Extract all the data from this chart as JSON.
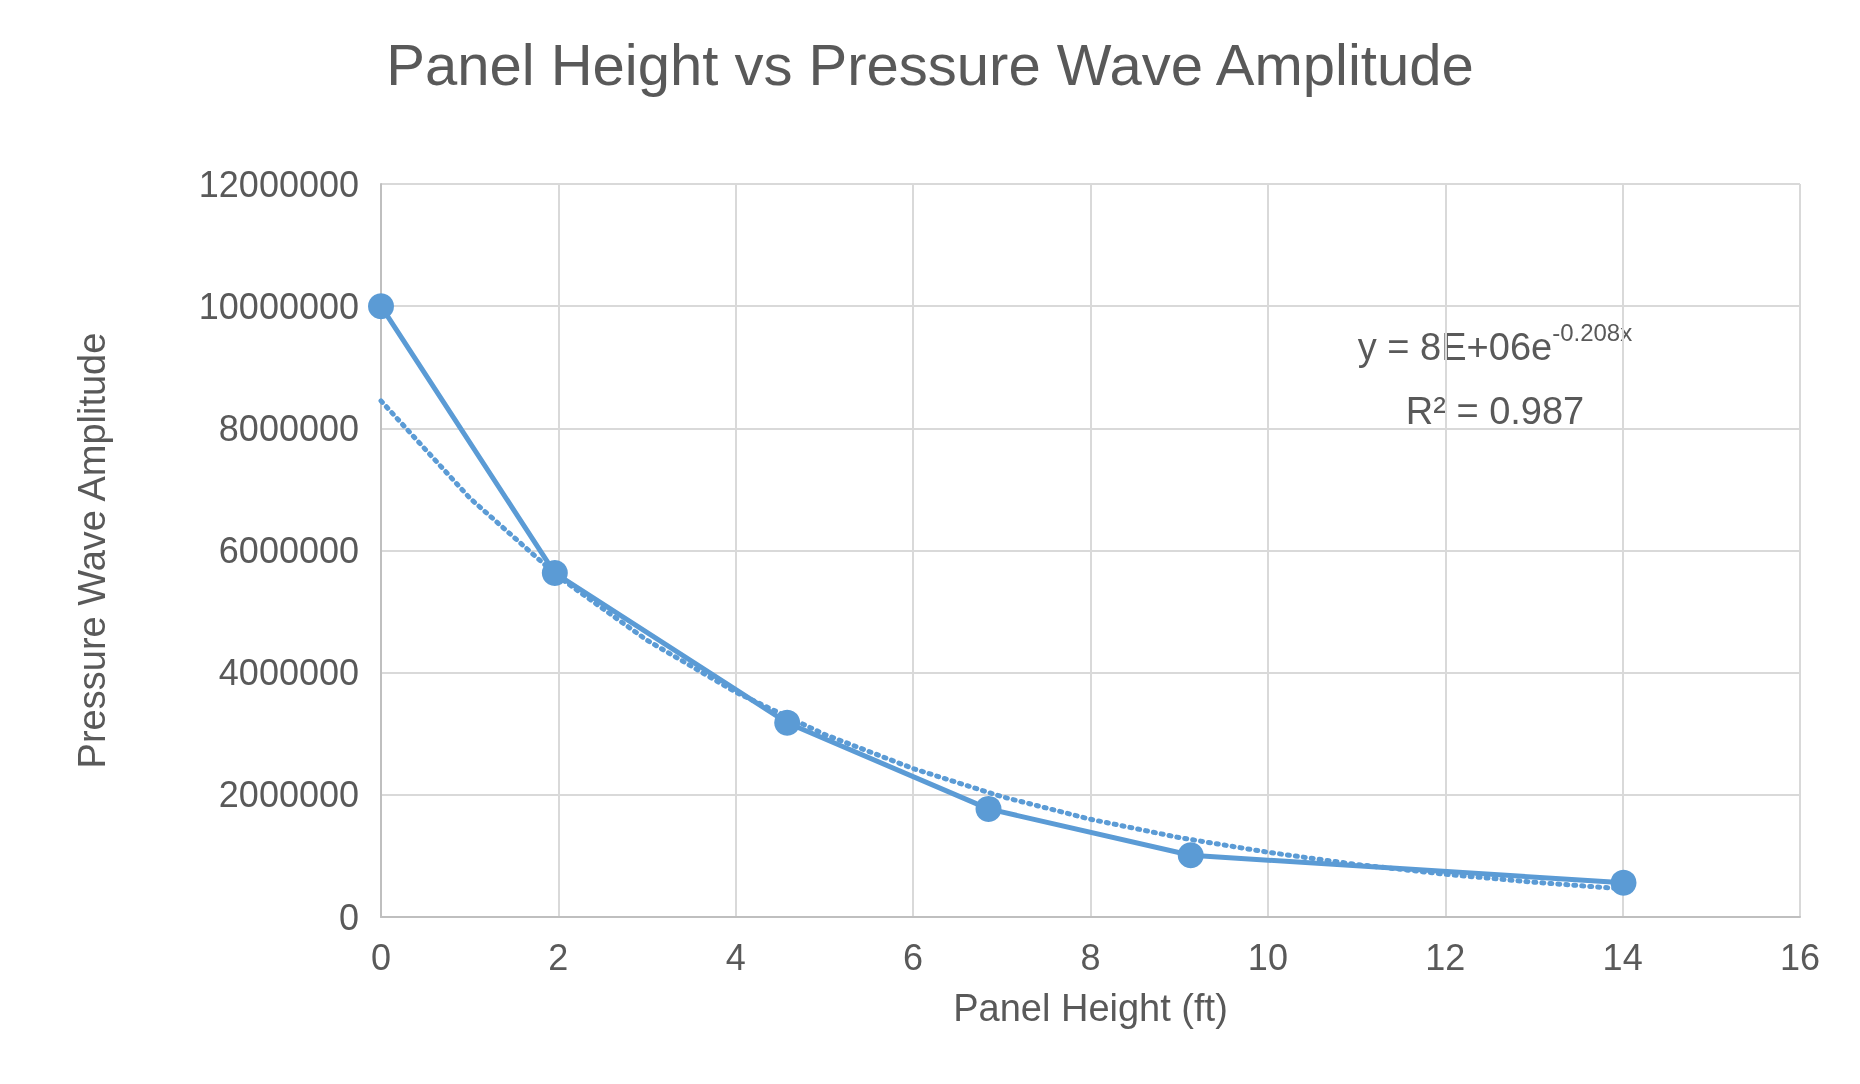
{
  "chart_data": {
    "type": "line",
    "title": "Panel Height vs Pressure Wave Amplitude",
    "xlabel": "Panel Height (ft)",
    "ylabel": "Pressure Wave Amplitude",
    "series": [
      {
        "color": "#5b9bd5",
        "marker": "circle",
        "line_style": "solid",
        "x": [
          0,
          1.96,
          4.58,
          6.85,
          9.13,
          14.01
        ],
        "values": [
          10000000,
          5630000,
          3180000,
          1770000,
          1010000,
          560000
        ]
      },
      {
        "color": "#5b9bd5",
        "marker": "none",
        "line_style": "dotted",
        "x": [
          0,
          1,
          2,
          3,
          4,
          5,
          6,
          7,
          8,
          9,
          10,
          11,
          12,
          13,
          14
        ],
        "values": [
          8450000,
          6860000,
          5570000,
          4530000,
          3680000,
          2990000,
          2430000,
          1970000,
          1600000,
          1300000,
          1060000,
          860000,
          700000,
          570000,
          460000
        ]
      }
    ],
    "annotations": [
      "y = 8E+06e$^{-0.208x}$",
      "R² = 0.987"
    ],
    "xlim": [
      0,
      16
    ],
    "xticks": [
      0,
      2,
      4,
      6,
      8,
      10,
      12,
      14,
      16
    ],
    "ylim": [
      0,
      12000000
    ],
    "yticks": [
      0,
      2000000,
      4000000,
      6000000,
      8000000,
      10000000,
      12000000
    ],
    "grid": true
  }
}
